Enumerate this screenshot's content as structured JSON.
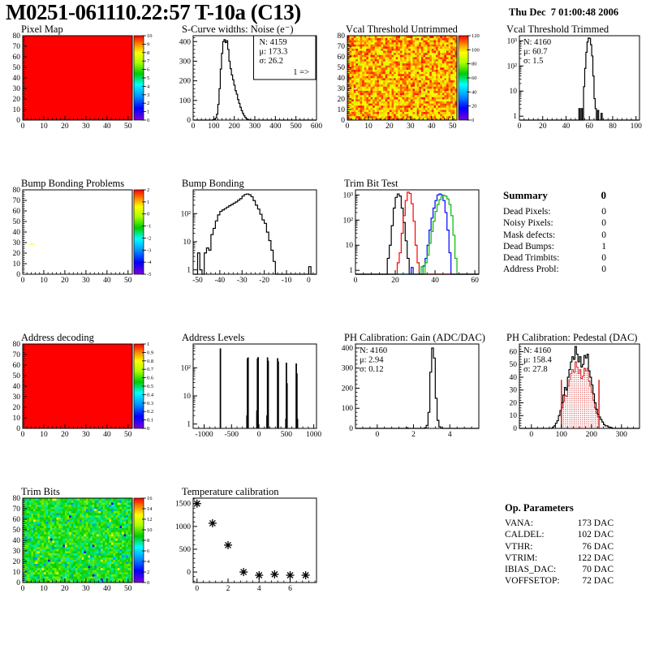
{
  "header": {
    "title": "M0251-061110.22:57 T-10a (C13)",
    "timestamp": "Thu Dec  7 01:00:48 2006"
  },
  "summary": {
    "title": "Summary",
    "total": "0",
    "rows": [
      {
        "label": "Dead Pixels:",
        "value": "0"
      },
      {
        "label": "Noisy Pixels:",
        "value": "0"
      },
      {
        "label": "Mask defects:",
        "value": "0"
      },
      {
        "label": "Dead Bumps:",
        "value": "1"
      },
      {
        "label": "Dead Trimbits:",
        "value": "0"
      },
      {
        "label": "Address Probl:",
        "value": "0"
      }
    ]
  },
  "op_parameters": {
    "title": "Op. Parameters",
    "rows": [
      {
        "label": "VANA:",
        "value": "173 DAC"
      },
      {
        "label": "CALDEL:",
        "value": "102 DAC"
      },
      {
        "label": "VTHR:",
        "value": "76 DAC"
      },
      {
        "label": "VTRIM:",
        "value": "122 DAC"
      },
      {
        "label": "IBIAS_DAC:",
        "value": "70 DAC"
      },
      {
        "label": "VOFFSETOP:",
        "value": "72 DAC"
      }
    ]
  },
  "palette_colors": [
    "#7d00d9",
    "#0000ff",
    "#0090ff",
    "#00ffff",
    "#00cc00",
    "#aaff00",
    "#ffff00",
    "#ff8800",
    "#ff0000"
  ],
  "accent_red": "#cc0000",
  "chart_data": [
    {
      "name": "pixel-map",
      "title": "Pixel Map",
      "type": "heatmap",
      "pos": {
        "col": 0,
        "row": 0
      },
      "x": {
        "min": 0,
        "max": 52,
        "ticks": [
          0,
          10,
          20,
          30,
          40,
          50
        ]
      },
      "y": {
        "min": 0,
        "max": 80,
        "ticks": [
          0,
          10,
          20,
          30,
          40,
          50,
          60,
          70,
          80
        ]
      },
      "z": {
        "min": 0,
        "max": 10,
        "ticks": [
          0,
          1,
          2,
          3,
          4,
          5,
          6,
          7,
          8,
          9,
          10
        ]
      },
      "fill": {
        "mode": "uniform",
        "value": 10
      }
    },
    {
      "name": "scurve-noise",
      "title": "S-Curve widths: Noise (e⁻)",
      "type": "histogram",
      "pos": {
        "col": 1,
        "row": 0
      },
      "x": {
        "min": 0,
        "max": 600,
        "ticks": [
          0,
          100,
          200,
          300,
          400,
          500,
          600
        ]
      },
      "y": {
        "min": 0,
        "max": 430,
        "ticks": [
          0,
          100,
          200,
          300,
          400
        ],
        "scale": "linear"
      },
      "series": [
        {
          "color": "#000000",
          "bin_start": 96,
          "bin_width": 6,
          "counts": [
            2,
            4,
            10,
            30,
            80,
            160,
            260,
            340,
            400,
            410,
            395,
            405,
            360,
            300,
            262,
            230,
            205,
            178,
            150,
            132,
            105,
            85,
            65,
            48,
            34,
            22,
            13,
            7,
            3,
            1
          ]
        }
      ],
      "stats": {
        "pos": "top-right",
        "box": true,
        "overflow": "1 =>",
        "lines": [
          {
            "text": "N: 4159",
            "color": "#000000"
          },
          {
            "text": "μ: 173.3",
            "color": "#000000"
          },
          {
            "text": "σ: 26.2",
            "color": "#000000"
          }
        ]
      }
    },
    {
      "name": "vcal-threshold-untrimmed",
      "title": "Vcal Threshold Untrimmed",
      "type": "heatmap",
      "pos": {
        "col": 2,
        "row": 0
      },
      "x": {
        "min": 0,
        "max": 52,
        "ticks": [
          0,
          10,
          20,
          30,
          40,
          50
        ]
      },
      "y": {
        "min": 0,
        "max": 80,
        "ticks": [
          0,
          10,
          20,
          30,
          40,
          50,
          60,
          70,
          80
        ]
      },
      "z": {
        "min": 0,
        "max": 120,
        "ticks": [
          0,
          20,
          40,
          60,
          80,
          100,
          120
        ]
      },
      "fill": {
        "mode": "noise",
        "mean": 104,
        "spread": 14,
        "outliers": [
          {
            "prob": 0.04,
            "value": 88
          },
          {
            "prob": 0.02,
            "value": 118
          }
        ],
        "special": [
          {
            "x": 3,
            "y": 29,
            "w": 1.5,
            "h": 1,
            "color": "#ffffff"
          }
        ]
      }
    },
    {
      "name": "vcal-threshold-trimmed",
      "title": "Vcal Threshold Trimmed",
      "type": "histogram",
      "pos": {
        "col": 3,
        "row": 0
      },
      "x": {
        "min": 0,
        "max": 103,
        "ticks": [
          0,
          20,
          40,
          60,
          80,
          100
        ]
      },
      "y": {
        "min": 0.7,
        "max": 1600,
        "ticks": [
          1,
          10,
          100,
          1000
        ],
        "tick_labels": [
          "1",
          "10",
          "10²",
          "10³"
        ],
        "scale": "log"
      },
      "series": [
        {
          "color": "#000000",
          "bin_start": 51,
          "bin_width": 1,
          "counts": [
            2,
            0,
            2,
            0,
            15,
            80,
            350,
            900,
            1300,
            1250,
            700,
            250,
            40,
            5,
            2,
            0,
            1.7,
            0,
            0,
            1.3
          ]
        }
      ],
      "stats": {
        "pos": "top-left",
        "box": false,
        "lines": [
          {
            "text": "N: 4160",
            "color": "#000000"
          },
          {
            "text": "μ: 60.7",
            "color": "#000000"
          },
          {
            "text": "σ:  1.5",
            "color": "#000000"
          }
        ]
      }
    },
    {
      "name": "bump-bonding-problems",
      "title": "Bump Bonding Problems",
      "type": "heatmap",
      "pos": {
        "col": 0,
        "row": 1
      },
      "x": {
        "min": 0,
        "max": 52,
        "ticks": [
          0,
          10,
          20,
          30,
          40,
          50
        ]
      },
      "y": {
        "min": 0,
        "max": 80,
        "ticks": [
          0,
          10,
          20,
          30,
          40,
          50,
          60,
          70,
          80
        ]
      },
      "z": {
        "min": -5,
        "max": 2,
        "ticks": [
          -5,
          -4,
          -3,
          -2,
          -1,
          0,
          1,
          2
        ]
      },
      "fill": {
        "mode": "empty",
        "points": [
          {
            "x": 3.5,
            "y": 28,
            "w": 2,
            "h": 1,
            "value": 0.6
          }
        ]
      }
    },
    {
      "name": "bump-bonding",
      "title": "Bump Bonding",
      "type": "histogram",
      "pos": {
        "col": 1,
        "row": 1
      },
      "x": {
        "min": -52,
        "max": 3.5,
        "ticks": [
          -50,
          -40,
          -30,
          -20,
          -10,
          0
        ]
      },
      "y": {
        "min": 0.7,
        "max": 700,
        "ticks": [
          1,
          10,
          100
        ],
        "tick_labels": [
          "1",
          "10",
          "10²"
        ],
        "scale": "log"
      },
      "series": [
        {
          "color": "#000000",
          "bin_start": -50,
          "bin_width": 1,
          "counts": [
            4,
            1,
            0,
            4,
            6,
            5,
            18,
            30,
            55,
            90,
            120,
            135,
            150,
            170,
            190,
            210,
            235,
            260,
            300,
            340,
            420,
            480,
            500,
            470,
            400,
            290,
            200,
            145,
            95,
            60,
            45,
            22,
            11,
            5,
            2,
            0,
            0,
            0,
            0,
            0,
            0,
            0,
            0,
            0,
            0,
            0,
            0,
            0,
            0,
            0,
            1.3
          ]
        }
      ]
    },
    {
      "name": "trim-bit-test",
      "title": "Trim Bit Test",
      "type": "histogram",
      "pos": {
        "col": 2,
        "row": 1
      },
      "x": {
        "min": 0,
        "max": 62,
        "ticks": [
          0,
          20,
          40,
          60
        ]
      },
      "y": {
        "min": 0.7,
        "max": 1600,
        "ticks": [
          1,
          10,
          100,
          1000
        ],
        "tick_labels": [
          "1",
          "10",
          "10²",
          "10³"
        ],
        "scale": "log"
      },
      "series": [
        {
          "color": "#000000",
          "bin_start": 16,
          "bin_width": 1,
          "counts": [
            3,
            10,
            60,
            300,
            800,
            1100,
            900,
            300,
            80,
            15,
            3
          ]
        },
        {
          "color": "#ff0000",
          "bin_start": 21,
          "bin_width": 1,
          "counts": [
            2,
            5,
            30,
            150,
            600,
            1300,
            1150,
            450,
            90,
            10,
            2
          ]
        },
        {
          "color": "#0000ff",
          "bin_start": 28,
          "bin_width": 1,
          "counts": [
            1.3,
            0,
            0,
            0,
            0,
            0,
            1.5,
            3,
            10,
            40,
            120,
            300,
            600,
            1000,
            1100,
            1000,
            600,
            200,
            40,
            5
          ]
        },
        {
          "color": "#00bb00",
          "bin_start": 33,
          "bin_width": 1,
          "counts": [
            1.4,
            0,
            2,
            4,
            12,
            35,
            90,
            220,
            420,
            650,
            850,
            950,
            900,
            700,
            420,
            150,
            25,
            3
          ]
        }
      ]
    },
    {
      "name": "address-decoding",
      "title": "Address decoding",
      "type": "heatmap",
      "pos": {
        "col": 0,
        "row": 2
      },
      "x": {
        "min": 0,
        "max": 52,
        "ticks": [
          0,
          10,
          20,
          30,
          40,
          50
        ]
      },
      "y": {
        "min": 0,
        "max": 80,
        "ticks": [
          0,
          10,
          20,
          30,
          40,
          50,
          60,
          70,
          80
        ]
      },
      "z": {
        "min": 0,
        "max": 1,
        "ticks": [
          0,
          0.1,
          0.2,
          0.3,
          0.4,
          0.5,
          0.6,
          0.7,
          0.8,
          0.9,
          1
        ]
      },
      "fill": {
        "mode": "uniform",
        "value": 1
      }
    },
    {
      "name": "address-levels",
      "title": "Address Levels",
      "type": "histogram",
      "style": "bars",
      "pos": {
        "col": 1,
        "row": 2
      },
      "x": {
        "min": -1200,
        "max": 1050,
        "ticks": [
          -1000,
          -500,
          0,
          500,
          1000
        ]
      },
      "y": {
        "min": 0.7,
        "max": 700,
        "ticks": [
          1,
          10,
          100
        ],
        "tick_labels": [
          "1",
          "10",
          "10²"
        ],
        "scale": "log"
      },
      "bars": [
        [
          -712,
          18,
          480
        ],
        [
          -228,
          8,
          2
        ],
        [
          -218,
          9,
          215
        ],
        [
          -206,
          8,
          230
        ],
        [
          -46,
          8,
          3
        ],
        [
          -36,
          9,
          210
        ],
        [
          -24,
          8,
          235
        ],
        [
          138,
          8,
          2
        ],
        [
          148,
          9,
          230
        ],
        [
          160,
          8,
          175
        ],
        [
          332,
          9,
          215
        ],
        [
          344,
          8,
          165
        ],
        [
          482,
          8,
          1.5
        ],
        [
          492,
          9,
          150
        ],
        [
          504,
          8,
          28
        ],
        [
          672,
          9,
          140
        ],
        [
          684,
          8,
          62
        ],
        [
          694,
          6,
          1.5
        ]
      ]
    },
    {
      "name": "ph-calibration-gain",
      "title": "PH Calibration: Gain (ADC/DAC)",
      "type": "histogram",
      "pos": {
        "col": 2,
        "row": 2
      },
      "x": {
        "min": -1.2,
        "max": 5.6,
        "ticks": [
          0,
          2,
          4
        ]
      },
      "y": {
        "min": 0,
        "max": 420,
        "ticks": [
          0,
          100,
          200,
          300,
          400
        ],
        "scale": "linear"
      },
      "series": [
        {
          "color": "#000000",
          "bin_start": 1.6,
          "bin_width": 0.1,
          "counts": [
            3,
            0,
            0,
            0,
            0,
            0,
            0,
            0,
            0,
            0,
            3,
            15,
            80,
            280,
            400,
            350,
            150,
            40,
            8,
            2
          ]
        }
      ],
      "stats": {
        "pos": "top-left",
        "box": false,
        "lines": [
          {
            "text": "N: 4160",
            "color": "#000000"
          },
          {
            "text": "μ: 2.94",
            "color": "#000000"
          },
          {
            "text": "σ: 0.12",
            "color": "#000000"
          }
        ]
      }
    },
    {
      "name": "ph-calibration-pedestal",
      "title": "PH Calibration: Pedestal (DAC)",
      "type": "histogram",
      "pos": {
        "col": 3,
        "row": 2
      },
      "x": {
        "min": -40,
        "max": 360,
        "ticks": [
          0,
          100,
          200,
          300
        ]
      },
      "y": {
        "min": 0,
        "max": 66,
        "ticks": [
          0,
          10,
          20,
          30,
          40,
          50,
          60
        ],
        "scale": "linear"
      },
      "series": [
        {
          "color": "#cc0000",
          "fill": "dots",
          "bin_start": 100,
          "bin_width": 5,
          "counts": [
            16,
            21,
            26,
            25,
            33,
            38,
            43,
            46,
            44,
            52,
            48,
            43,
            46,
            39,
            41,
            47,
            45,
            47,
            37,
            33,
            28,
            22,
            16,
            12,
            9
          ]
        },
        {
          "color": "#000000",
          "bin_start": 70,
          "bin_width": 5,
          "counts": [
            1,
            2,
            4,
            6,
            10,
            14,
            20,
            26,
            32,
            30,
            40,
            46,
            52,
            56,
            54,
            64,
            58,
            52,
            56,
            48,
            50,
            57,
            55,
            58,
            45,
            40,
            34,
            27,
            20,
            15,
            11,
            9,
            7,
            5,
            3,
            2,
            2,
            1,
            1,
            0.5
          ]
        }
      ],
      "vlines": [
        {
          "x": 100,
          "height": 38,
          "color": "#cc0000"
        },
        {
          "x": 225,
          "height": 38,
          "color": "#cc0000"
        }
      ],
      "stats": {
        "pos": "top-left",
        "box": false,
        "lines": [
          {
            "text": "N: 4160",
            "color": "#000000"
          },
          {
            "text": "μ: 158.4",
            "color": "#cc0000"
          },
          {
            "text": "σ: 27.8",
            "color": "#cc0000"
          }
        ]
      }
    },
    {
      "name": "trim-bits",
      "title": "Trim Bits",
      "type": "heatmap",
      "pos": {
        "col": 0,
        "row": 3
      },
      "x": {
        "min": 0,
        "max": 52,
        "ticks": [
          0,
          10,
          20,
          30,
          40,
          50
        ]
      },
      "y": {
        "min": 0,
        "max": 80,
        "ticks": [
          0,
          10,
          20,
          30,
          40,
          50,
          60,
          70,
          80
        ]
      },
      "z": {
        "min": 0,
        "max": 16,
        "ticks": [
          0,
          2,
          4,
          6,
          8,
          10,
          12,
          14,
          16
        ]
      },
      "fill": {
        "mode": "noise",
        "mean": 8.8,
        "spread": 1.6,
        "outliers": [
          {
            "prob": 0.02,
            "value": 4.5
          },
          {
            "prob": 0.015,
            "value": 12.5
          },
          {
            "prob": 0.008,
            "value": 1.5
          }
        ]
      }
    },
    {
      "name": "temperature-calibration",
      "title": "Temperature calibration",
      "type": "scatter",
      "pos": {
        "col": 1,
        "row": 3
      },
      "x": {
        "min": -0.25,
        "max": 7.7,
        "ticks": [
          0,
          2,
          4,
          6
        ]
      },
      "y": {
        "min": -230,
        "max": 1620,
        "ticks": [
          0,
          500,
          1000,
          1500
        ],
        "scale": "linear"
      },
      "marker": "asterisk",
      "points": [
        [
          0,
          1500
        ],
        [
          1,
          1070
        ],
        [
          2,
          590
        ],
        [
          3,
          0
        ],
        [
          4,
          -70
        ],
        [
          5,
          -50
        ],
        [
          6,
          -70
        ],
        [
          7,
          -70
        ]
      ]
    }
  ]
}
